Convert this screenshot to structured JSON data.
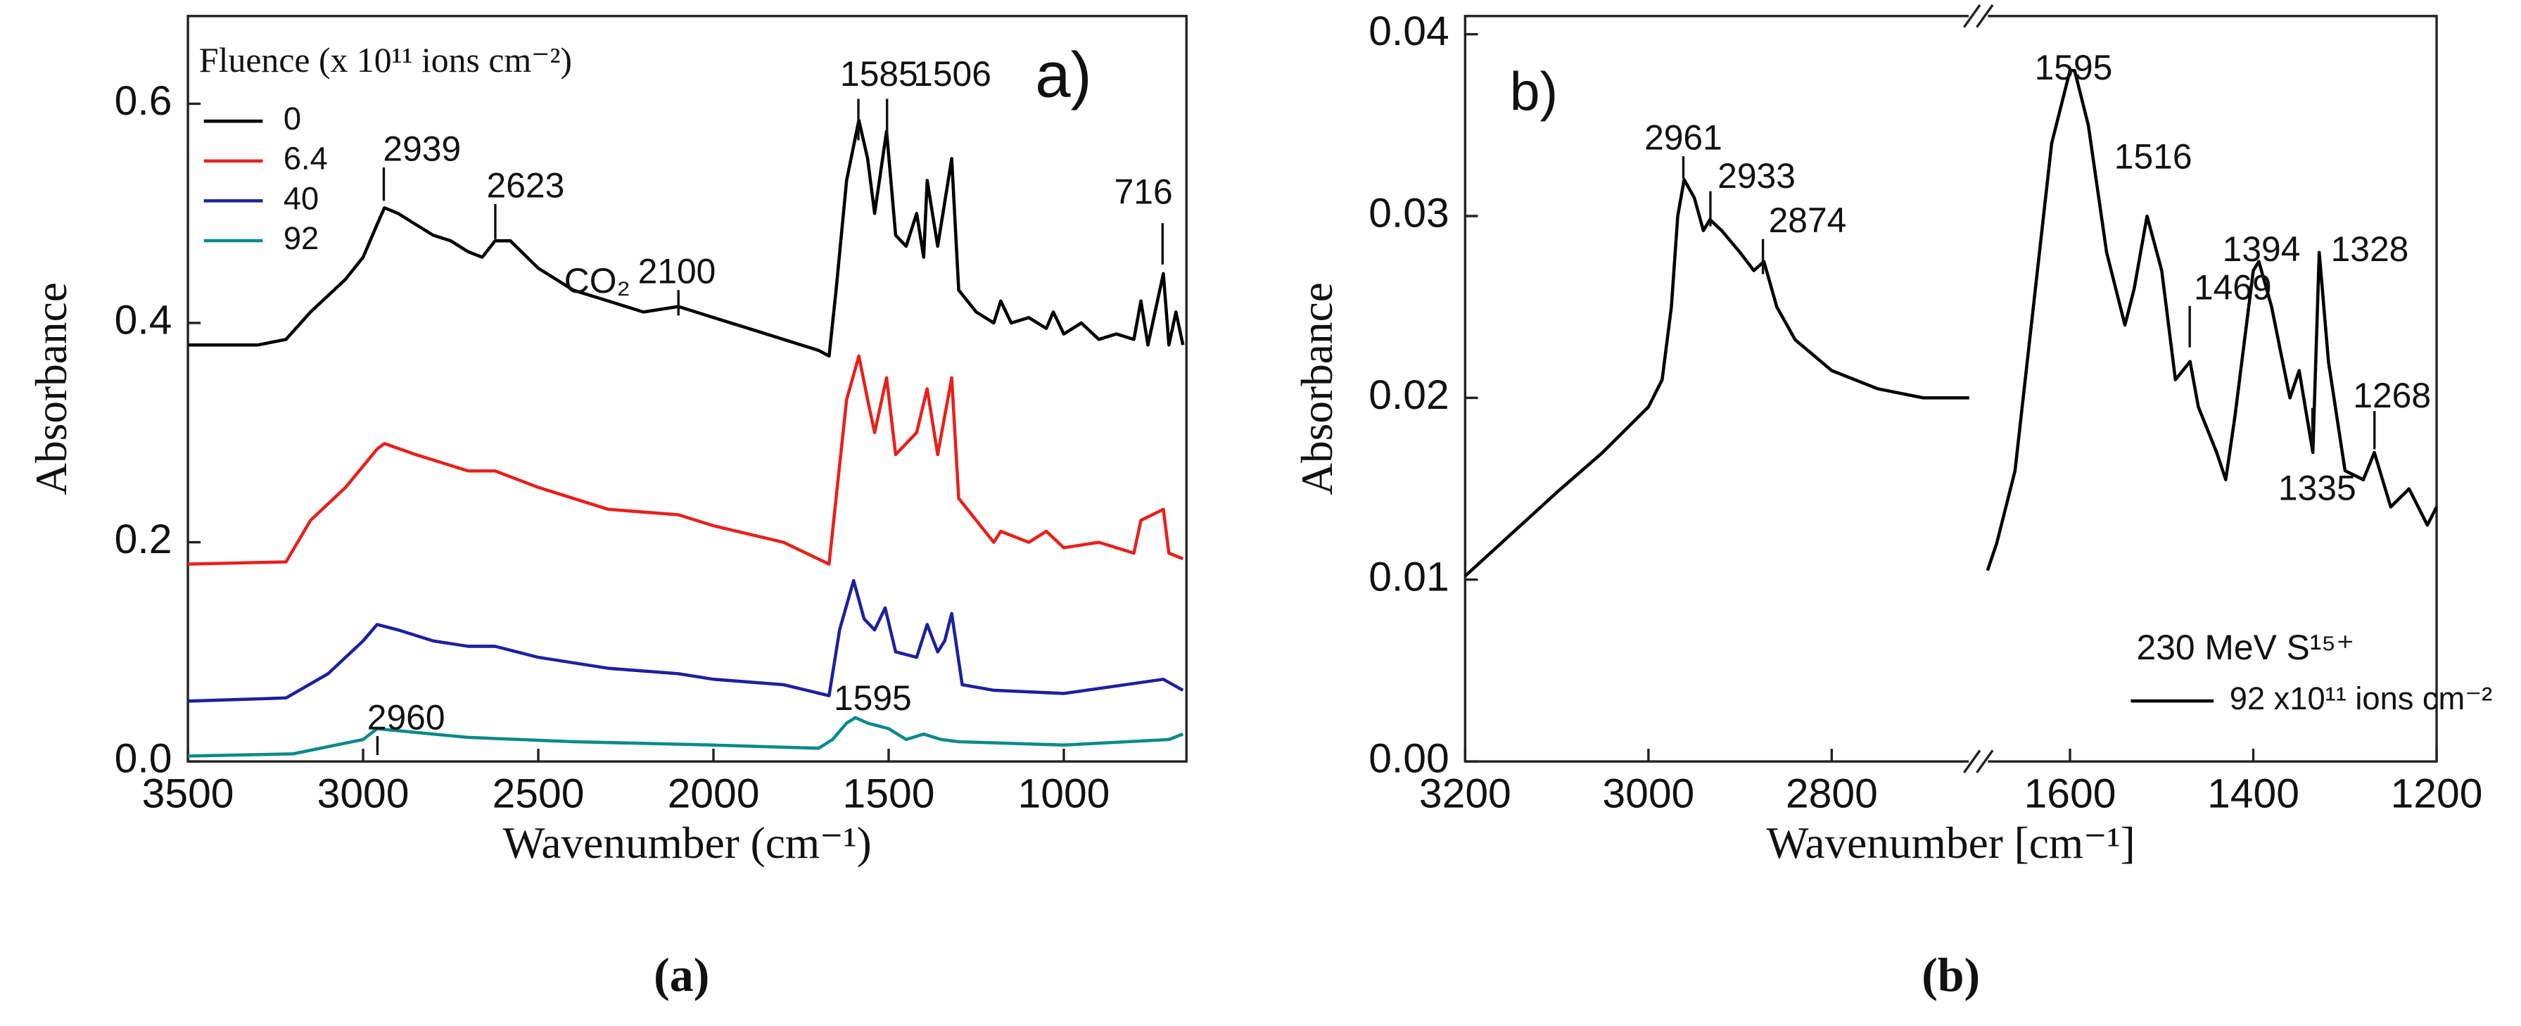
{
  "chart_data": [
    {
      "type": "line",
      "panel_label": "a)",
      "caption": "(a)",
      "x_label": "Wavenumber (cm⁻¹)",
      "y_label": "Absorbance",
      "legend_title": "Fluence (x 10¹¹ ions cm⁻²)",
      "xlim": [
        3500,
        650
      ],
      "xticks": [
        3500,
        3000,
        2500,
        2000,
        1500,
        1000
      ],
      "ylim": [
        0,
        0.68
      ],
      "yticks": [
        {
          "value": 0,
          "label": "0.0"
        },
        0.2,
        0.4,
        0.6
      ],
      "annotations": [
        "2939",
        "2623",
        "CO₂",
        "2100",
        "1585",
        "1506",
        "716",
        "2960",
        "1595"
      ],
      "series": [
        {
          "name": "0",
          "color": "#000000",
          "x": [
            3500,
            3300,
            3220,
            3150,
            3050,
            3000,
            2960,
            2939,
            2900,
            2850,
            2800,
            2750,
            2700,
            2660,
            2623,
            2580,
            2500,
            2400,
            2350,
            2300,
            2200,
            2100,
            2050,
            2000,
            1900,
            1800,
            1700,
            1670,
            1650,
            1620,
            1585,
            1560,
            1540,
            1506,
            1480,
            1450,
            1420,
            1400,
            1390,
            1360,
            1340,
            1320,
            1300,
            1250,
            1200,
            1180,
            1150,
            1100,
            1050,
            1030,
            1000,
            950,
            900,
            850,
            800,
            780,
            760,
            716,
            700,
            680,
            660
          ],
          "values": [
            0.38,
            0.38,
            0.385,
            0.41,
            0.44,
            0.46,
            0.49,
            0.505,
            0.5,
            0.49,
            0.48,
            0.475,
            0.465,
            0.46,
            0.475,
            0.475,
            0.45,
            0.43,
            0.425,
            0.42,
            0.41,
            0.415,
            0.41,
            0.405,
            0.395,
            0.385,
            0.375,
            0.37,
            0.43,
            0.53,
            0.585,
            0.55,
            0.5,
            0.575,
            0.48,
            0.47,
            0.5,
            0.46,
            0.53,
            0.47,
            0.51,
            0.55,
            0.43,
            0.41,
            0.4,
            0.42,
            0.4,
            0.405,
            0.395,
            0.41,
            0.39,
            0.4,
            0.385,
            0.39,
            0.385,
            0.42,
            0.38,
            0.445,
            0.38,
            0.41,
            0.38
          ]
        },
        {
          "name": "6.4",
          "color": "#e8201c",
          "x": [
            3500,
            3220,
            3150,
            3050,
            2960,
            2939,
            2850,
            2700,
            2623,
            2500,
            2300,
            2100,
            2000,
            1800,
            1670,
            1650,
            1620,
            1585,
            1560,
            1540,
            1506,
            1480,
            1420,
            1390,
            1360,
            1320,
            1300,
            1200,
            1180,
            1100,
            1050,
            1000,
            900,
            800,
            780,
            716,
            700,
            660
          ],
          "values": [
            0.18,
            0.182,
            0.22,
            0.25,
            0.285,
            0.29,
            0.28,
            0.265,
            0.265,
            0.25,
            0.23,
            0.225,
            0.215,
            0.2,
            0.18,
            0.24,
            0.33,
            0.37,
            0.33,
            0.3,
            0.35,
            0.28,
            0.3,
            0.34,
            0.28,
            0.35,
            0.24,
            0.2,
            0.21,
            0.2,
            0.21,
            0.195,
            0.2,
            0.19,
            0.22,
            0.23,
            0.19,
            0.185
          ]
        },
        {
          "name": "40",
          "color": "#1f1f9e",
          "x": [
            3500,
            3220,
            3100,
            3000,
            2960,
            2900,
            2800,
            2700,
            2623,
            2500,
            2300,
            2100,
            2000,
            1800,
            1670,
            1640,
            1600,
            1570,
            1540,
            1510,
            1480,
            1420,
            1390,
            1360,
            1340,
            1320,
            1290,
            1200,
            1000,
            716,
            660
          ],
          "values": [
            0.055,
            0.058,
            0.08,
            0.11,
            0.125,
            0.12,
            0.11,
            0.105,
            0.105,
            0.095,
            0.085,
            0.08,
            0.075,
            0.07,
            0.06,
            0.12,
            0.165,
            0.13,
            0.12,
            0.14,
            0.1,
            0.095,
            0.125,
            0.1,
            0.11,
            0.135,
            0.07,
            0.065,
            0.062,
            0.075,
            0.065
          ]
        },
        {
          "name": "92",
          "color": "#0a8a8a",
          "x": [
            3500,
            3200,
            3000,
            2960,
            2900,
            2700,
            2400,
            2000,
            1700,
            1660,
            1620,
            1595,
            1560,
            1500,
            1450,
            1400,
            1350,
            1300,
            1000,
            700,
            660
          ],
          "values": [
            0.005,
            0.007,
            0.02,
            0.03,
            0.028,
            0.022,
            0.018,
            0.015,
            0.012,
            0.02,
            0.035,
            0.04,
            0.035,
            0.03,
            0.02,
            0.025,
            0.02,
            0.018,
            0.015,
            0.02,
            0.025
          ]
        }
      ]
    },
    {
      "type": "line",
      "panel_label": "b)",
      "caption": "(b)",
      "x_label": "Wavenumber [cm⁻¹]",
      "y_label": "Absorbance",
      "xlim": [
        3200,
        1200
      ],
      "xbreak": [
        2640,
        1700
      ],
      "xticks": [
        3200,
        3000,
        2800,
        1600,
        1400,
        1200
      ],
      "ylim": [
        0,
        0.041
      ],
      "yticks": [
        {
          "value": 0,
          "label": "0.00"
        },
        0.01,
        0.02,
        0.03,
        0.04
      ],
      "annotations": [
        "2961",
        "2933",
        "2874",
        "1595",
        "1516",
        "1469",
        "1394",
        "1328",
        "1335",
        "1268",
        "230 MeV S¹⁵⁺"
      ],
      "series": [
        {
          "name": "92 x10¹¹ ions cm⁻²",
          "color": "#000000",
          "x": [
            3200,
            3150,
            3100,
            3050,
            3020,
            3000,
            2985,
            2975,
            2968,
            2961,
            2950,
            2940,
            2933,
            2920,
            2900,
            2885,
            2874,
            2860,
            2840,
            2800,
            2750,
            2700,
            2650,
            null,
            1690,
            1680,
            1660,
            1640,
            1620,
            1600,
            1595,
            1580,
            1560,
            1540,
            1530,
            1516,
            1500,
            1485,
            1469,
            1460,
            1440,
            1430,
            1420,
            1400,
            1394,
            1380,
            1360,
            1350,
            1335,
            1328,
            1318,
            1300,
            1280,
            1268,
            1250,
            1230,
            1210,
            1200
          ],
          "values": [
            0.0102,
            0.0125,
            0.0148,
            0.017,
            0.0185,
            0.0195,
            0.021,
            0.025,
            0.03,
            0.032,
            0.031,
            0.0292,
            0.0298,
            0.0292,
            0.028,
            0.027,
            0.0275,
            0.025,
            0.0232,
            0.0215,
            0.0205,
            0.02,
            0.02,
            null,
            0.0105,
            0.012,
            0.016,
            0.025,
            0.034,
            0.038,
            0.038,
            0.035,
            0.028,
            0.024,
            0.026,
            0.03,
            0.027,
            0.021,
            0.022,
            0.0195,
            0.017,
            0.0155,
            0.019,
            0.027,
            0.0275,
            0.025,
            0.02,
            0.0215,
            0.017,
            0.028,
            0.022,
            0.016,
            0.0155,
            0.017,
            0.014,
            0.015,
            0.013,
            0.014
          ]
        }
      ]
    }
  ]
}
